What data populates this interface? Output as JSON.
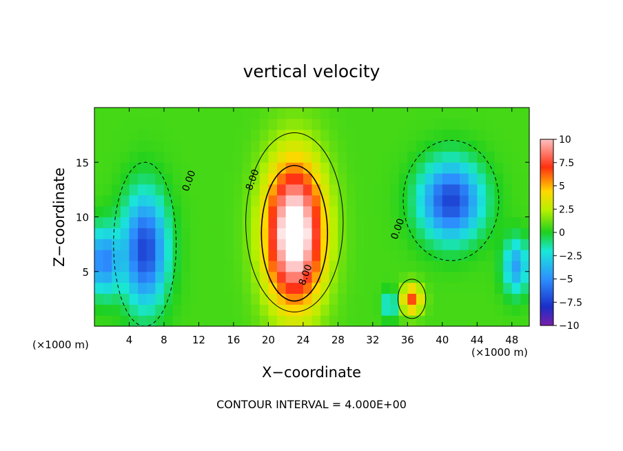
{
  "chart_data": {
    "type": "heatmap",
    "title": "vertical velocity",
    "xlabel": "X−coordinate",
    "ylabel": "Z−coordinate",
    "x_unit_left": "(×1000 m)",
    "x_unit_right": "(×1000 m)",
    "footer": "CONTOUR INTERVAL = 4.000E+00",
    "xlim": [
      0,
      50
    ],
    "ylim": [
      0,
      20
    ],
    "xticks": [
      4,
      8,
      12,
      16,
      20,
      24,
      28,
      32,
      36,
      40,
      44,
      48
    ],
    "xtick_labels": [
      "4",
      "8",
      "12",
      "16",
      "20",
      "24",
      "28",
      "32",
      "36",
      "40",
      "44",
      "48"
    ],
    "yticks": [
      5,
      10,
      15
    ],
    "ytick_labels": [
      "5",
      "10",
      "15"
    ],
    "colorbar": {
      "range": [
        -10,
        10
      ],
      "ticks": [
        10,
        7.5,
        5,
        2.5,
        0,
        -2.5,
        -5,
        -7.5,
        -10
      ],
      "tick_labels": [
        "10",
        "7.5",
        "5",
        "2.5",
        "0",
        "−2.5",
        "−5",
        "−7.5",
        "−10"
      ]
    },
    "contour_labels": [
      {
        "text": "0.00",
        "x": 11.2,
        "y": 13.2
      },
      {
        "text": "8.00",
        "x": 18.5,
        "y": 13.3
      },
      {
        "text": "8.00",
        "x": 24.6,
        "y": 4.6
      },
      {
        "text": "0.00",
        "x": 35.2,
        "y": 8.8
      }
    ],
    "features": [
      {
        "value": 12,
        "x": 23,
        "y": 8.5,
        "sx": 3.3,
        "sy": 6.5
      },
      {
        "value": 6,
        "x": 36.5,
        "y": 2.5,
        "sx": 1.2,
        "sy": 1.3
      },
      {
        "value": -8,
        "x": 41,
        "y": 11.5,
        "sx": 3.5,
        "sy": 3.5
      },
      {
        "value": -8,
        "x": 5.8,
        "y": 7,
        "sx": 2.5,
        "sy": 5
      },
      {
        "value": -6,
        "x": 1,
        "y": 6,
        "sx": 1.8,
        "sy": 3
      },
      {
        "value": -5,
        "x": 48.5,
        "y": 5.5,
        "sx": 1.5,
        "sy": 2.5
      },
      {
        "value": -4,
        "x": 34,
        "y": 2,
        "sx": 0.8,
        "sy": 1.2
      }
    ]
  }
}
